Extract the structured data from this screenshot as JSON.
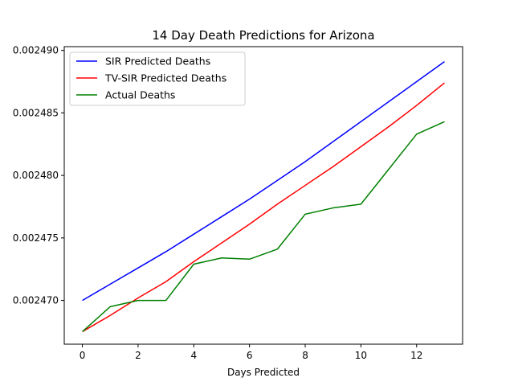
{
  "chart_data": {
    "type": "line",
    "title": "14 Day Death Predictions for Arizona",
    "xlabel": "Days Predicted",
    "ylabel": "",
    "xlim": [
      -0.65,
      13.65
    ],
    "ylim": [
      0.0024665,
      0.0024903
    ],
    "x_ticks": [
      0,
      2,
      4,
      6,
      8,
      10,
      12
    ],
    "y_ticks": [
      0.00247,
      0.002475,
      0.00248,
      0.002485,
      0.00249
    ],
    "y_tick_labels": [
      "0.002470",
      "0.002475",
      "0.002480",
      "0.002485",
      "0.002490"
    ],
    "grid": false,
    "legend_position": "top-left",
    "x": [
      0,
      1,
      2,
      3,
      4,
      5,
      6,
      7,
      8,
      9,
      10,
      11,
      12,
      13
    ],
    "series": [
      {
        "name": "SIR Predicted Deaths",
        "color": "#0000ff",
        "values": [
          0.00247,
          0.0024713,
          0.0024726,
          0.0024739,
          0.0024753,
          0.0024767,
          0.0024781,
          0.0024796,
          0.0024811,
          0.0024827,
          0.0024843,
          0.0024859,
          0.0024875,
          0.0024891
        ]
      },
      {
        "name": "TV-SIR Predicted Deaths",
        "color": "#ff0000",
        "values": [
          0.0024675,
          0.0024688,
          0.0024702,
          0.0024715,
          0.0024731,
          0.0024746,
          0.0024761,
          0.0024777,
          0.0024792,
          0.0024807,
          0.0024823,
          0.0024839,
          0.0024856,
          0.0024874
        ]
      },
      {
        "name": "Actual Deaths",
        "color": "#008000",
        "values": [
          0.0024675,
          0.0024695,
          0.00247,
          0.00247,
          0.0024729,
          0.0024734,
          0.0024733,
          0.0024741,
          0.0024769,
          0.0024774,
          0.0024777,
          0.0024805,
          0.0024833,
          0.0024843
        ]
      }
    ]
  }
}
